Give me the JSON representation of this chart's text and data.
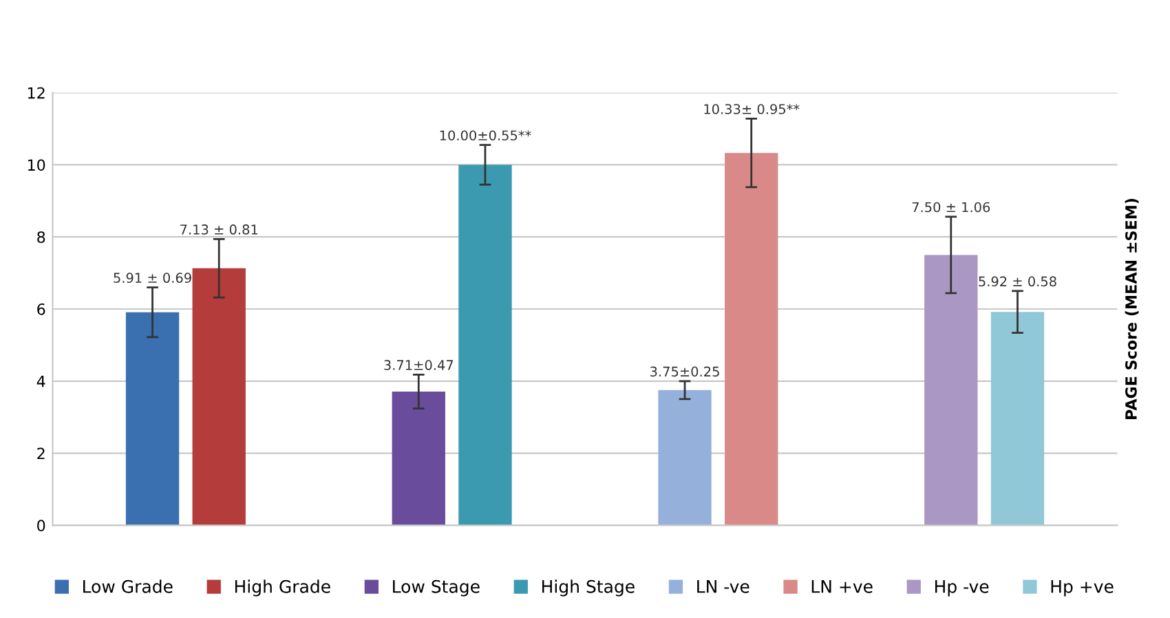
{
  "chart_data": {
    "type": "bar",
    "ylabel": "PAGE Score (MEAN ±SEM)",
    "categories": [
      null,
      null,
      null,
      null
    ],
    "series": [
      {
        "name": "Low Grade",
        "color": "#3a6fb0",
        "values": [
          5.91,
          null,
          null,
          null
        ],
        "errors": [
          0.69,
          null,
          null,
          null
        ],
        "value_labels": [
          "5.91 ± 0.69",
          null,
          null,
          null
        ]
      },
      {
        "name": "High Grade",
        "color": "#b43c3a",
        "values": [
          7.13,
          null,
          null,
          null
        ],
        "errors": [
          0.81,
          null,
          null,
          null
        ],
        "value_labels": [
          "7.13 ± 0.81",
          null,
          null,
          null
        ]
      },
      {
        "name": "Low Stage",
        "color": "#6a4c9c",
        "values": [
          null,
          3.71,
          null,
          null
        ],
        "errors": [
          null,
          0.47,
          null,
          null
        ],
        "value_labels": [
          null,
          "3.71±0.47",
          null,
          null
        ]
      },
      {
        "name": "High Stage",
        "color": "#3b9ab0",
        "values": [
          null,
          10.0,
          null,
          null
        ],
        "errors": [
          null,
          0.55,
          null,
          null
        ],
        "value_labels": [
          null,
          "10.00±0.55**",
          null,
          null
        ]
      },
      {
        "name": "LN -ve",
        "color": "#96b0dc",
        "values": [
          null,
          null,
          3.75,
          null
        ],
        "errors": [
          null,
          null,
          0.25,
          null
        ],
        "value_labels": [
          null,
          null,
          "3.75±0.25",
          null
        ]
      },
      {
        "name": "LN +ve",
        "color": "#d98a88",
        "values": [
          null,
          null,
          10.33,
          null
        ],
        "errors": [
          null,
          null,
          0.95,
          null
        ],
        "value_labels": [
          null,
          null,
          "10.33± 0.95**",
          null
        ]
      },
      {
        "name": "Hp -ve",
        "color": "#ab97c4",
        "values": [
          null,
          null,
          null,
          7.5
        ],
        "errors": [
          null,
          null,
          null,
          1.06
        ],
        "value_labels": [
          null,
          null,
          null,
          "7.50 ± 1.06"
        ]
      },
      {
        "name": "Hp +ve",
        "color": "#90c8d8",
        "values": [
          null,
          null,
          null,
          5.92
        ],
        "errors": [
          null,
          null,
          null,
          0.58
        ],
        "value_labels": [
          null,
          null,
          null,
          "5.92 ± 0.58"
        ]
      }
    ],
    "ylim": [
      0,
      12
    ],
    "yticks": [
      0,
      2,
      4,
      6,
      8,
      10,
      12
    ],
    "grid": "y",
    "legend": "bottom"
  }
}
